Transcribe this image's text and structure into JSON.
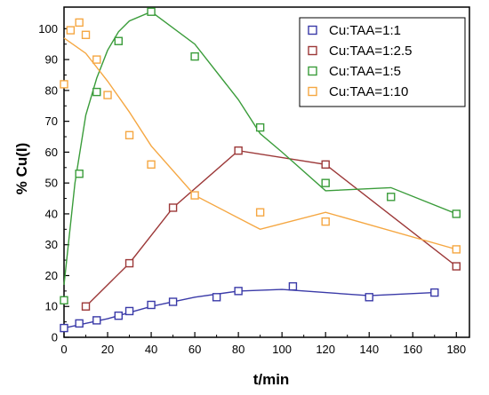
{
  "chart_data": {
    "type": "scatter",
    "xlabel": "t/min",
    "ylabel": "% Cu(I)",
    "xlim": [
      0,
      186
    ],
    "ylim": [
      0,
      107
    ],
    "xticks": [
      0,
      20,
      40,
      60,
      80,
      100,
      120,
      140,
      160,
      180
    ],
    "yticks": [
      0,
      10,
      20,
      30,
      40,
      50,
      60,
      70,
      80,
      90,
      100
    ],
    "grid": false,
    "legend_position": "top-right",
    "series": [
      {
        "name": "Cu:TAA=1:1",
        "color": "#3a3aa8",
        "points": [
          [
            0,
            3
          ],
          [
            7,
            4.5
          ],
          [
            15,
            5.5
          ],
          [
            25,
            7
          ],
          [
            30,
            8.5
          ],
          [
            40,
            10.5
          ],
          [
            50,
            11.5
          ],
          [
            70,
            13
          ],
          [
            80,
            15
          ],
          [
            105,
            16.5
          ],
          [
            140,
            13
          ],
          [
            170,
            14.5
          ]
        ],
        "fit": [
          [
            0,
            3
          ],
          [
            20,
            6
          ],
          [
            40,
            10
          ],
          [
            60,
            13
          ],
          [
            80,
            15
          ],
          [
            100,
            15.5
          ],
          [
            120,
            14.5
          ],
          [
            140,
            13.5
          ],
          [
            170,
            14.5
          ]
        ]
      },
      {
        "name": "Cu:TAA=1:2.5",
        "color": "#9c3838",
        "points": [
          [
            10,
            10
          ],
          [
            30,
            24
          ],
          [
            50,
            42
          ],
          [
            80,
            60.5
          ],
          [
            120,
            56
          ],
          [
            180,
            23
          ]
        ],
        "fit": [
          [
            10,
            10
          ],
          [
            30,
            24
          ],
          [
            50,
            42
          ],
          [
            80,
            60.5
          ],
          [
            120,
            56
          ],
          [
            180,
            23
          ]
        ]
      },
      {
        "name": "Cu:TAA=1:5",
        "color": "#3a9c3a",
        "points": [
          [
            0,
            12
          ],
          [
            7,
            53
          ],
          [
            15,
            79.5
          ],
          [
            25,
            96
          ],
          [
            40,
            105.5
          ],
          [
            60,
            91
          ],
          [
            90,
            68
          ],
          [
            120,
            50
          ],
          [
            150,
            45.5
          ],
          [
            180,
            40
          ]
        ],
        "fit": [
          [
            0,
            17
          ],
          [
            5,
            50
          ],
          [
            10,
            72
          ],
          [
            15,
            84
          ],
          [
            20,
            93
          ],
          [
            25,
            99
          ],
          [
            30,
            102.5
          ],
          [
            40,
            105.5
          ],
          [
            60,
            95
          ],
          [
            80,
            77
          ],
          [
            90,
            66
          ],
          [
            100,
            60
          ],
          [
            120,
            47.5
          ],
          [
            150,
            48.5
          ],
          [
            180,
            40
          ]
        ]
      },
      {
        "name": "Cu:TAA=1:10",
        "color": "#f5a742",
        "points": [
          [
            0,
            82
          ],
          [
            3,
            99.5
          ],
          [
            7,
            102
          ],
          [
            10,
            98
          ],
          [
            15,
            90
          ],
          [
            20,
            78.5
          ],
          [
            30,
            65.5
          ],
          [
            40,
            56
          ],
          [
            60,
            46
          ],
          [
            90,
            40.5
          ],
          [
            120,
            37.5
          ],
          [
            180,
            28.5
          ]
        ],
        "fit": [
          [
            0,
            97
          ],
          [
            10,
            92
          ],
          [
            20,
            83
          ],
          [
            30,
            73
          ],
          [
            40,
            62
          ],
          [
            60,
            46
          ],
          [
            90,
            35
          ],
          [
            120,
            40.5
          ],
          [
            180,
            28.5
          ]
        ]
      }
    ]
  }
}
